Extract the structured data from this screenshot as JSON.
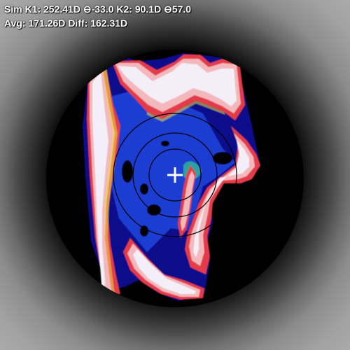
{
  "readouts": {
    "line1": {
      "sim_k1_label": "Sim K1:",
      "sim_k1_value": "252.41D",
      "axis1_symbol": "⊖",
      "axis1_value": "-33.0",
      "k2_label": "K2:",
      "k2_value": "90.1D",
      "axis2_symbol": "⊖",
      "axis2_value": "57.0"
    },
    "line2": {
      "avg_label": "Avg:",
      "avg_value": "171.26D",
      "diff_label": "Diff:",
      "diff_value": "162.31D"
    }
  },
  "map": {
    "type": "topography-overlay",
    "ring_count": 3,
    "center_marker": "crosshair",
    "colors": {
      "background": "#000000",
      "low": "#0a0f8c",
      "mid": "#1e3cd2",
      "teal": "#2aa3a0",
      "yellow": "#e8e83a",
      "orange": "#f08a3a",
      "red": "#e43a4a",
      "pink": "#f2b8bc",
      "white": "#f3eef8",
      "rings": "#000000"
    }
  }
}
